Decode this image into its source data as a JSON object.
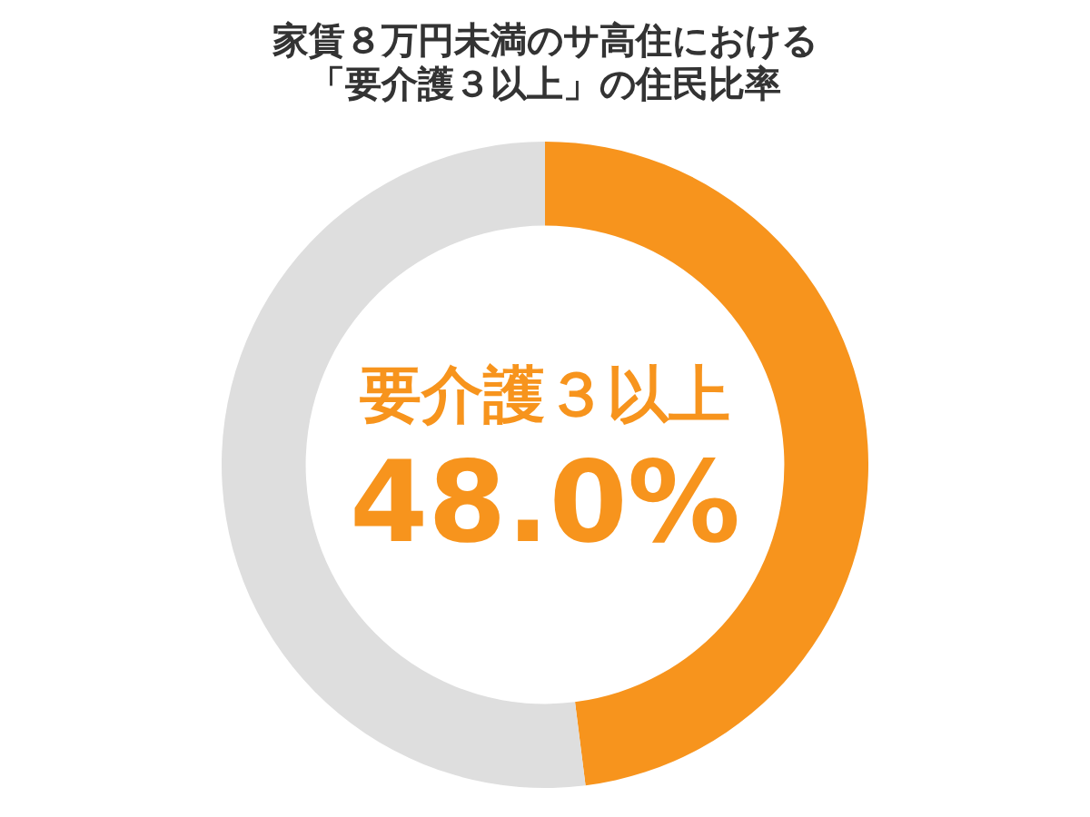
{
  "chart_data": {
    "type": "donut",
    "title": "家賃８万円未満のサ高住における「要介護３以上」の住民比率",
    "categories": [
      "要介護３以上",
      null
    ],
    "values": [
      48.0,
      52.0
    ],
    "colors": [
      "#f7941d",
      "#dedede"
    ],
    "value_labels": [
      "48.0%",
      null
    ],
    "legend": false
  }
}
